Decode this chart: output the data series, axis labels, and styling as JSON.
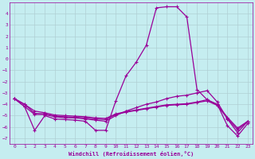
{
  "xlabel": "Windchill (Refroidissement éolien,°C)",
  "background_color": "#c5edf0",
  "grid_color": "#b0cfd4",
  "line_color": "#990099",
  "xlim": [
    -0.5,
    23.5
  ],
  "ylim": [
    -7.5,
    5.0
  ],
  "xticks": [
    0,
    1,
    2,
    3,
    4,
    5,
    6,
    7,
    8,
    9,
    10,
    11,
    12,
    13,
    14,
    15,
    16,
    17,
    18,
    19,
    20,
    21,
    22,
    23
  ],
  "yticks": [
    -7,
    -6,
    -5,
    -4,
    -3,
    -2,
    -1,
    0,
    1,
    2,
    3,
    4
  ],
  "curve1_x": [
    0,
    1,
    2,
    3,
    4,
    5,
    6,
    7,
    8,
    9,
    10,
    11,
    12,
    13,
    14,
    15,
    16,
    17,
    18,
    19,
    20,
    21,
    22,
    23
  ],
  "curve1_y": [
    -3.5,
    -4.2,
    -6.3,
    -5.0,
    -5.3,
    -5.35,
    -5.4,
    -5.5,
    -6.3,
    -6.3,
    -3.7,
    -1.5,
    -0.3,
    1.2,
    4.5,
    4.6,
    4.6,
    3.7,
    -2.7,
    -3.6,
    -4.0,
    -5.9,
    -6.8,
    -5.7
  ],
  "curve2_x": [
    0,
    1,
    2,
    3,
    4,
    5,
    6,
    7,
    8,
    9,
    10,
    11,
    12,
    13,
    14,
    15,
    16,
    17,
    18,
    19,
    20,
    21,
    22,
    23
  ],
  "curve2_y": [
    -3.5,
    -4.2,
    -4.9,
    -4.9,
    -5.1,
    -5.2,
    -5.2,
    -5.3,
    -5.4,
    -5.5,
    -5.0,
    -4.6,
    -4.3,
    -4.0,
    -3.8,
    -3.5,
    -3.3,
    -3.2,
    -3.0,
    -2.8,
    -3.8,
    -5.3,
    -6.5,
    -5.5
  ],
  "curve3_x": [
    0,
    1,
    2,
    3,
    4,
    5,
    6,
    7,
    8,
    9,
    10,
    11,
    12,
    13,
    14,
    15,
    16,
    17,
    18,
    19,
    20,
    21,
    22,
    23
  ],
  "curve3_y": [
    -3.5,
    -4.0,
    -4.8,
    -4.85,
    -5.05,
    -5.1,
    -5.15,
    -5.2,
    -5.3,
    -5.35,
    -4.9,
    -4.7,
    -4.55,
    -4.4,
    -4.25,
    -4.1,
    -4.05,
    -4.0,
    -3.85,
    -3.7,
    -4.1,
    -5.25,
    -6.25,
    -5.5
  ],
  "curve4_x": [
    0,
    1,
    2,
    3,
    4,
    5,
    6,
    7,
    8,
    9,
    10,
    11,
    12,
    13,
    14,
    15,
    16,
    17,
    18,
    19,
    20,
    21,
    22,
    23
  ],
  "curve4_y": [
    -3.5,
    -4.0,
    -4.6,
    -4.75,
    -4.95,
    -5.0,
    -5.05,
    -5.1,
    -5.2,
    -5.25,
    -4.85,
    -4.65,
    -4.5,
    -4.35,
    -4.2,
    -4.05,
    -4.0,
    -3.95,
    -3.8,
    -3.6,
    -4.05,
    -5.15,
    -6.1,
    -5.5
  ]
}
